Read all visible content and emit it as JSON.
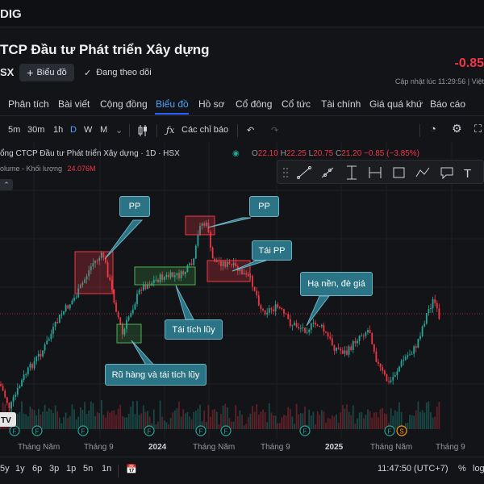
{
  "header": {
    "ticker": "DIG"
  },
  "company": {
    "name": "TCP Đầu tư Phát triển Xây dựng",
    "exchange": "SX",
    "add_chart_label": "Biểu đồ",
    "follow_label": "Đang theo dõi",
    "price_change": "-0.85",
    "updated": "Cập nhật lúc  11:29:56 | Việt"
  },
  "tabs": [
    {
      "label": "Phân tích"
    },
    {
      "label": "Bài viết"
    },
    {
      "label": "Cộng đồng"
    },
    {
      "label": "Biểu đồ",
      "active": true
    },
    {
      "label": "Hồ sơ"
    },
    {
      "label": "Cổ đông"
    },
    {
      "label": "Cổ tức"
    },
    {
      "label": "Tài chính"
    },
    {
      "label": "Giá quá khứ"
    },
    {
      "label": "Báo cáo"
    }
  ],
  "toolbar": {
    "intervals": [
      "5m",
      "30m",
      "1h",
      "D",
      "W",
      "M"
    ],
    "active_interval": "D",
    "indicators_label": "Các chỉ báo"
  },
  "legend": {
    "title": "ổng CTCP Đầu tư Phát triển Xây dựng · 1D · HSX",
    "open_key": "O",
    "open": "22.10",
    "high_key": "H",
    "high": "22.25",
    "low_key": "L",
    "low": "20.75",
    "close_key": "C",
    "close": "21.20",
    "change": "−0.85 (−3.85%)",
    "volume_label": "olume - Khối lượng",
    "volume_value": "24.076M"
  },
  "annotations": [
    {
      "id": "pp1",
      "text": "PP"
    },
    {
      "id": "pp2",
      "text": "PP"
    },
    {
      "id": "taipp",
      "text": "Tái PP"
    },
    {
      "id": "hanen",
      "text": "Hạ nền, đè giá"
    },
    {
      "id": "taitichluy",
      "text": "Tái tích lũy"
    },
    {
      "id": "ruhang",
      "text": "Rũ hàng và tái tích lũy"
    }
  ],
  "xaxis": [
    {
      "label": "Tháng Năm"
    },
    {
      "label": "Tháng 9"
    },
    {
      "label": "2024",
      "bold": true
    },
    {
      "label": "Tháng Năm"
    },
    {
      "label": "Tháng 9"
    },
    {
      "label": "2025",
      "bold": true
    },
    {
      "label": "Tháng Năm"
    },
    {
      "label": "Tháng 9"
    }
  ],
  "ranges": [
    "5y",
    "1y",
    "6p",
    "3p",
    "1p",
    "5n",
    "1n"
  ],
  "clock": "11:47:50 (UTC+7)",
  "percent_label": "%",
  "log_label": "log",
  "colors": {
    "up": "#26a69a",
    "down": "#f23645",
    "accent": "#2962ff",
    "annotation": "#2a7486"
  }
}
